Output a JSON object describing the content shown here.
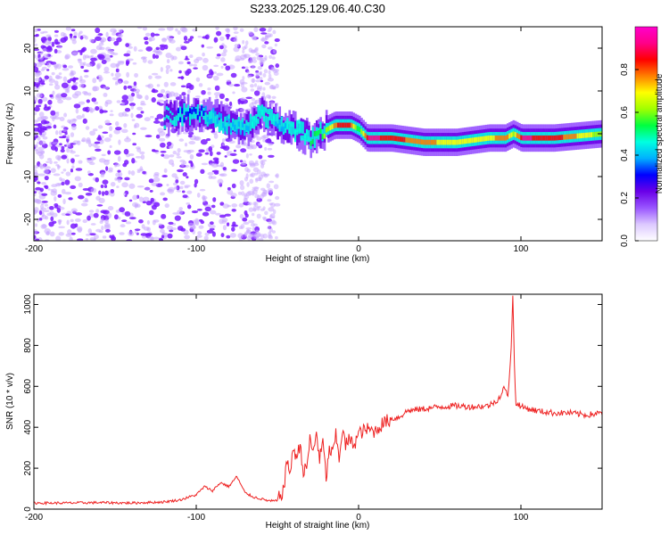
{
  "title": "S233.2025.129.06.40.C30",
  "chart_data": [
    {
      "type": "heatmap",
      "xlabel": "Height of straight line (km)",
      "ylabel": "Frequency (Hz)",
      "xlim": [
        -200,
        150
      ],
      "ylim": [
        -25,
        25
      ],
      "x_ticks": [
        -200,
        -100,
        0,
        100
      ],
      "y_ticks": [
        -20,
        -10,
        0,
        10,
        20
      ],
      "colorbar": {
        "label": "Normalized spectral amplitude",
        "range": [
          0,
          1
        ],
        "ticks": [
          0.0,
          0.2,
          0.4,
          0.6,
          0.8
        ],
        "tick_labels": [
          "0.0",
          "0.2",
          "0.4",
          "0.6",
          "0.8"
        ],
        "colors": [
          "#ffffff",
          "#dcc8ff",
          "#9955ff",
          "#6a00e8",
          "#0000ff",
          "#00b0ff",
          "#00ffe0",
          "#00ff40",
          "#a0ff00",
          "#ffff00",
          "#ff8000",
          "#ff0000",
          "#ff0088",
          "#ff00cc"
        ]
      },
      "ridge_x": [
        -120,
        -100,
        -90,
        -80,
        -70,
        -60,
        -50,
        -40,
        -30,
        -20,
        -15,
        -10,
        -5,
        0,
        5,
        10,
        20,
        40,
        60,
        80,
        90,
        95,
        100,
        120,
        150
      ],
      "ridge_freq": [
        4,
        5,
        4,
        2,
        1,
        5,
        2,
        1,
        -1,
        1,
        2,
        2,
        2,
        1,
        -1,
        -1,
        -1,
        -2,
        -2,
        -1,
        -1,
        0,
        -1,
        -1,
        0
      ],
      "ridge_amp": [
        0.25,
        0.3,
        0.4,
        0.4,
        0.4,
        0.5,
        0.4,
        0.45,
        0.5,
        0.6,
        0.8,
        0.85,
        0.8,
        0.5,
        0.9,
        0.9,
        0.85,
        0.75,
        0.7,
        0.7,
        0.8,
        0.6,
        0.9,
        0.85,
        0.6
      ]
    },
    {
      "type": "line",
      "xlabel": "Height of straight line (km)",
      "ylabel": "SNR (10 * v/v)",
      "xlim": [
        -200,
        150
      ],
      "ylim": [
        0,
        1050
      ],
      "x_ticks": [
        -200,
        -100,
        0,
        100
      ],
      "y_ticks": [
        0,
        200,
        400,
        600,
        800,
        1000
      ],
      "series": [
        {
          "color": "#ee2222",
          "x": [
            -200,
            -180,
            -160,
            -140,
            -120,
            -110,
            -100,
            -95,
            -90,
            -85,
            -80,
            -75,
            -70,
            -65,
            -60,
            -55,
            -50,
            -46,
            -44,
            -42,
            -40,
            -38,
            -36,
            -34,
            -32,
            -30,
            -28,
            -26,
            -24,
            -22,
            -20,
            -18,
            -16,
            -14,
            -12,
            -10,
            -8,
            -6,
            -4,
            -2,
            0,
            5,
            10,
            15,
            20,
            25,
            30,
            40,
            50,
            60,
            70,
            80,
            85,
            88,
            90,
            92,
            94,
            95,
            96,
            97,
            98,
            100,
            110,
            120,
            130,
            140,
            150
          ],
          "y": [
            30,
            30,
            32,
            30,
            35,
            45,
            70,
            110,
            90,
            130,
            110,
            160,
            80,
            60,
            50,
            40,
            40,
            100,
            240,
            180,
            300,
            250,
            320,
            180,
            200,
            340,
            270,
            380,
            240,
            330,
            150,
            290,
            270,
            360,
            250,
            390,
            310,
            340,
            320,
            330,
            370,
            390,
            380,
            420,
            440,
            450,
            480,
            490,
            500,
            505,
            500,
            505,
            530,
            560,
            600,
            540,
            800,
            1050,
            700,
            500,
            520,
            500,
            480,
            470,
            470,
            460,
            470
          ]
        }
      ]
    }
  ]
}
